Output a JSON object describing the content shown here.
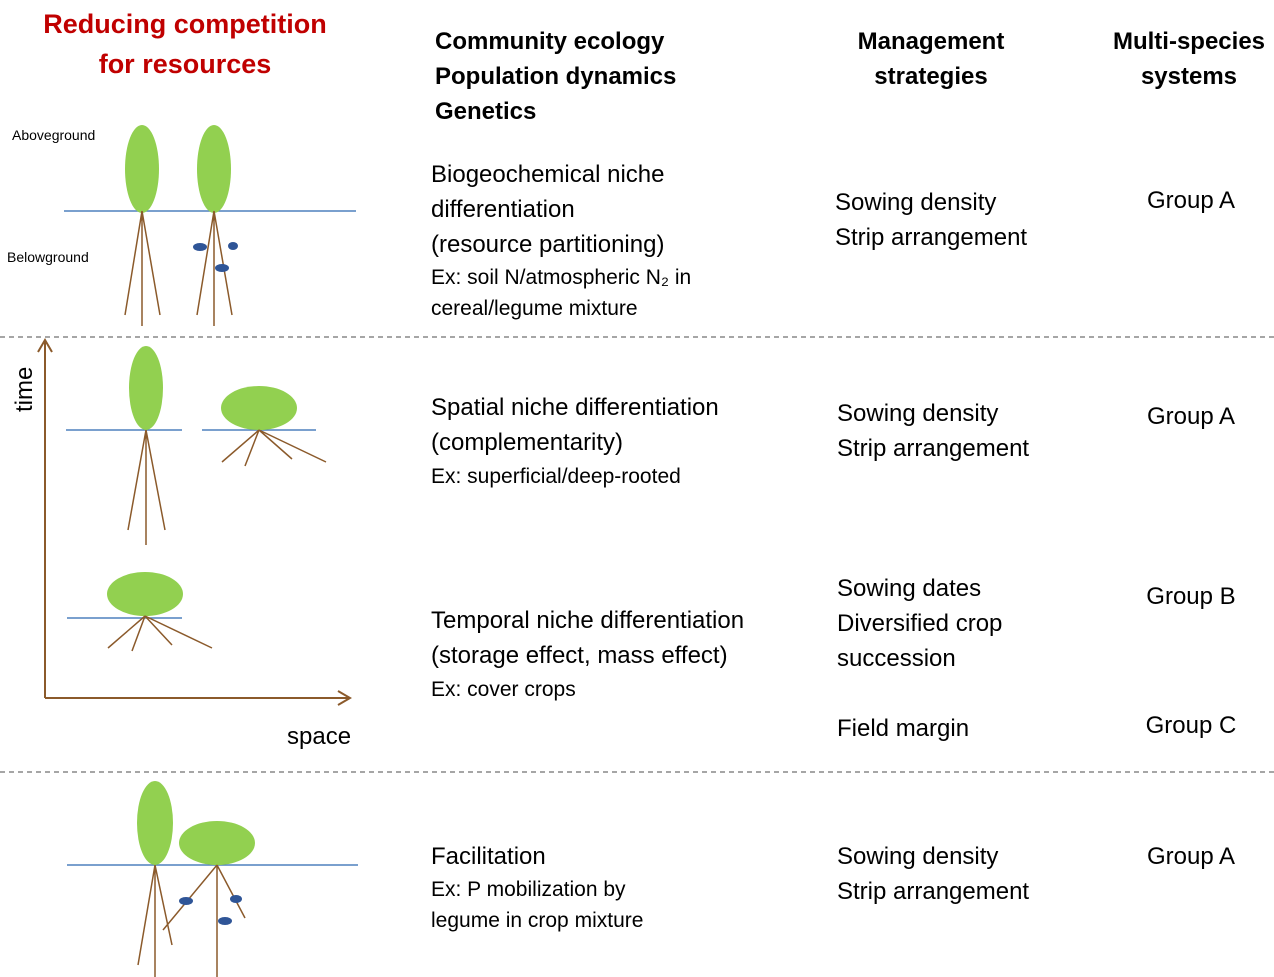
{
  "header": {
    "title": [
      "Reducing competition",
      "for resources"
    ],
    "columns": [
      [
        "Community ecology",
        "Population dynamics",
        "Genetics"
      ],
      [
        "Management",
        "strategies"
      ],
      [
        "Multi-species",
        "systems"
      ]
    ]
  },
  "labels": {
    "aboveground": "Aboveground",
    "belowground": "Belowground",
    "time": "time",
    "space": "space"
  },
  "rows": [
    {
      "mechanism": [
        "Biogeochemical niche",
        "differentiation",
        "(resource partitioning)"
      ],
      "example": [
        "Ex: soil N/atmospheric N₂ in",
        "cereal/legume mixture"
      ],
      "management": [
        {
          "strategies": [
            "Sowing density",
            "Strip arrangement"
          ],
          "system": "Group A"
        }
      ]
    },
    {
      "mechanism": [
        "Spatial niche differentiation",
        "(complementarity)"
      ],
      "example": [
        "Ex: superficial/deep-rooted"
      ],
      "management": [
        {
          "strategies": [
            "Sowing density",
            "Strip arrangement"
          ],
          "system": "Group A"
        }
      ]
    },
    {
      "mechanism": [
        "Temporal niche differentiation",
        "(storage effect, mass effect)"
      ],
      "example": [
        "Ex: cover crops"
      ],
      "management": [
        {
          "strategies": [
            "Sowing dates",
            "Diversified crop",
            "succession"
          ],
          "system": "Group B"
        },
        {
          "strategies": [
            "Field margin"
          ],
          "system": "Group C"
        }
      ]
    },
    {
      "mechanism": [
        "Facilitation"
      ],
      "example": [
        "Ex: P mobilization by",
        "legume in crop mixture"
      ],
      "management": [
        {
          "strategies": [
            "Sowing density",
            "Strip arrangement"
          ],
          "system": "Group A"
        }
      ]
    }
  ]
}
